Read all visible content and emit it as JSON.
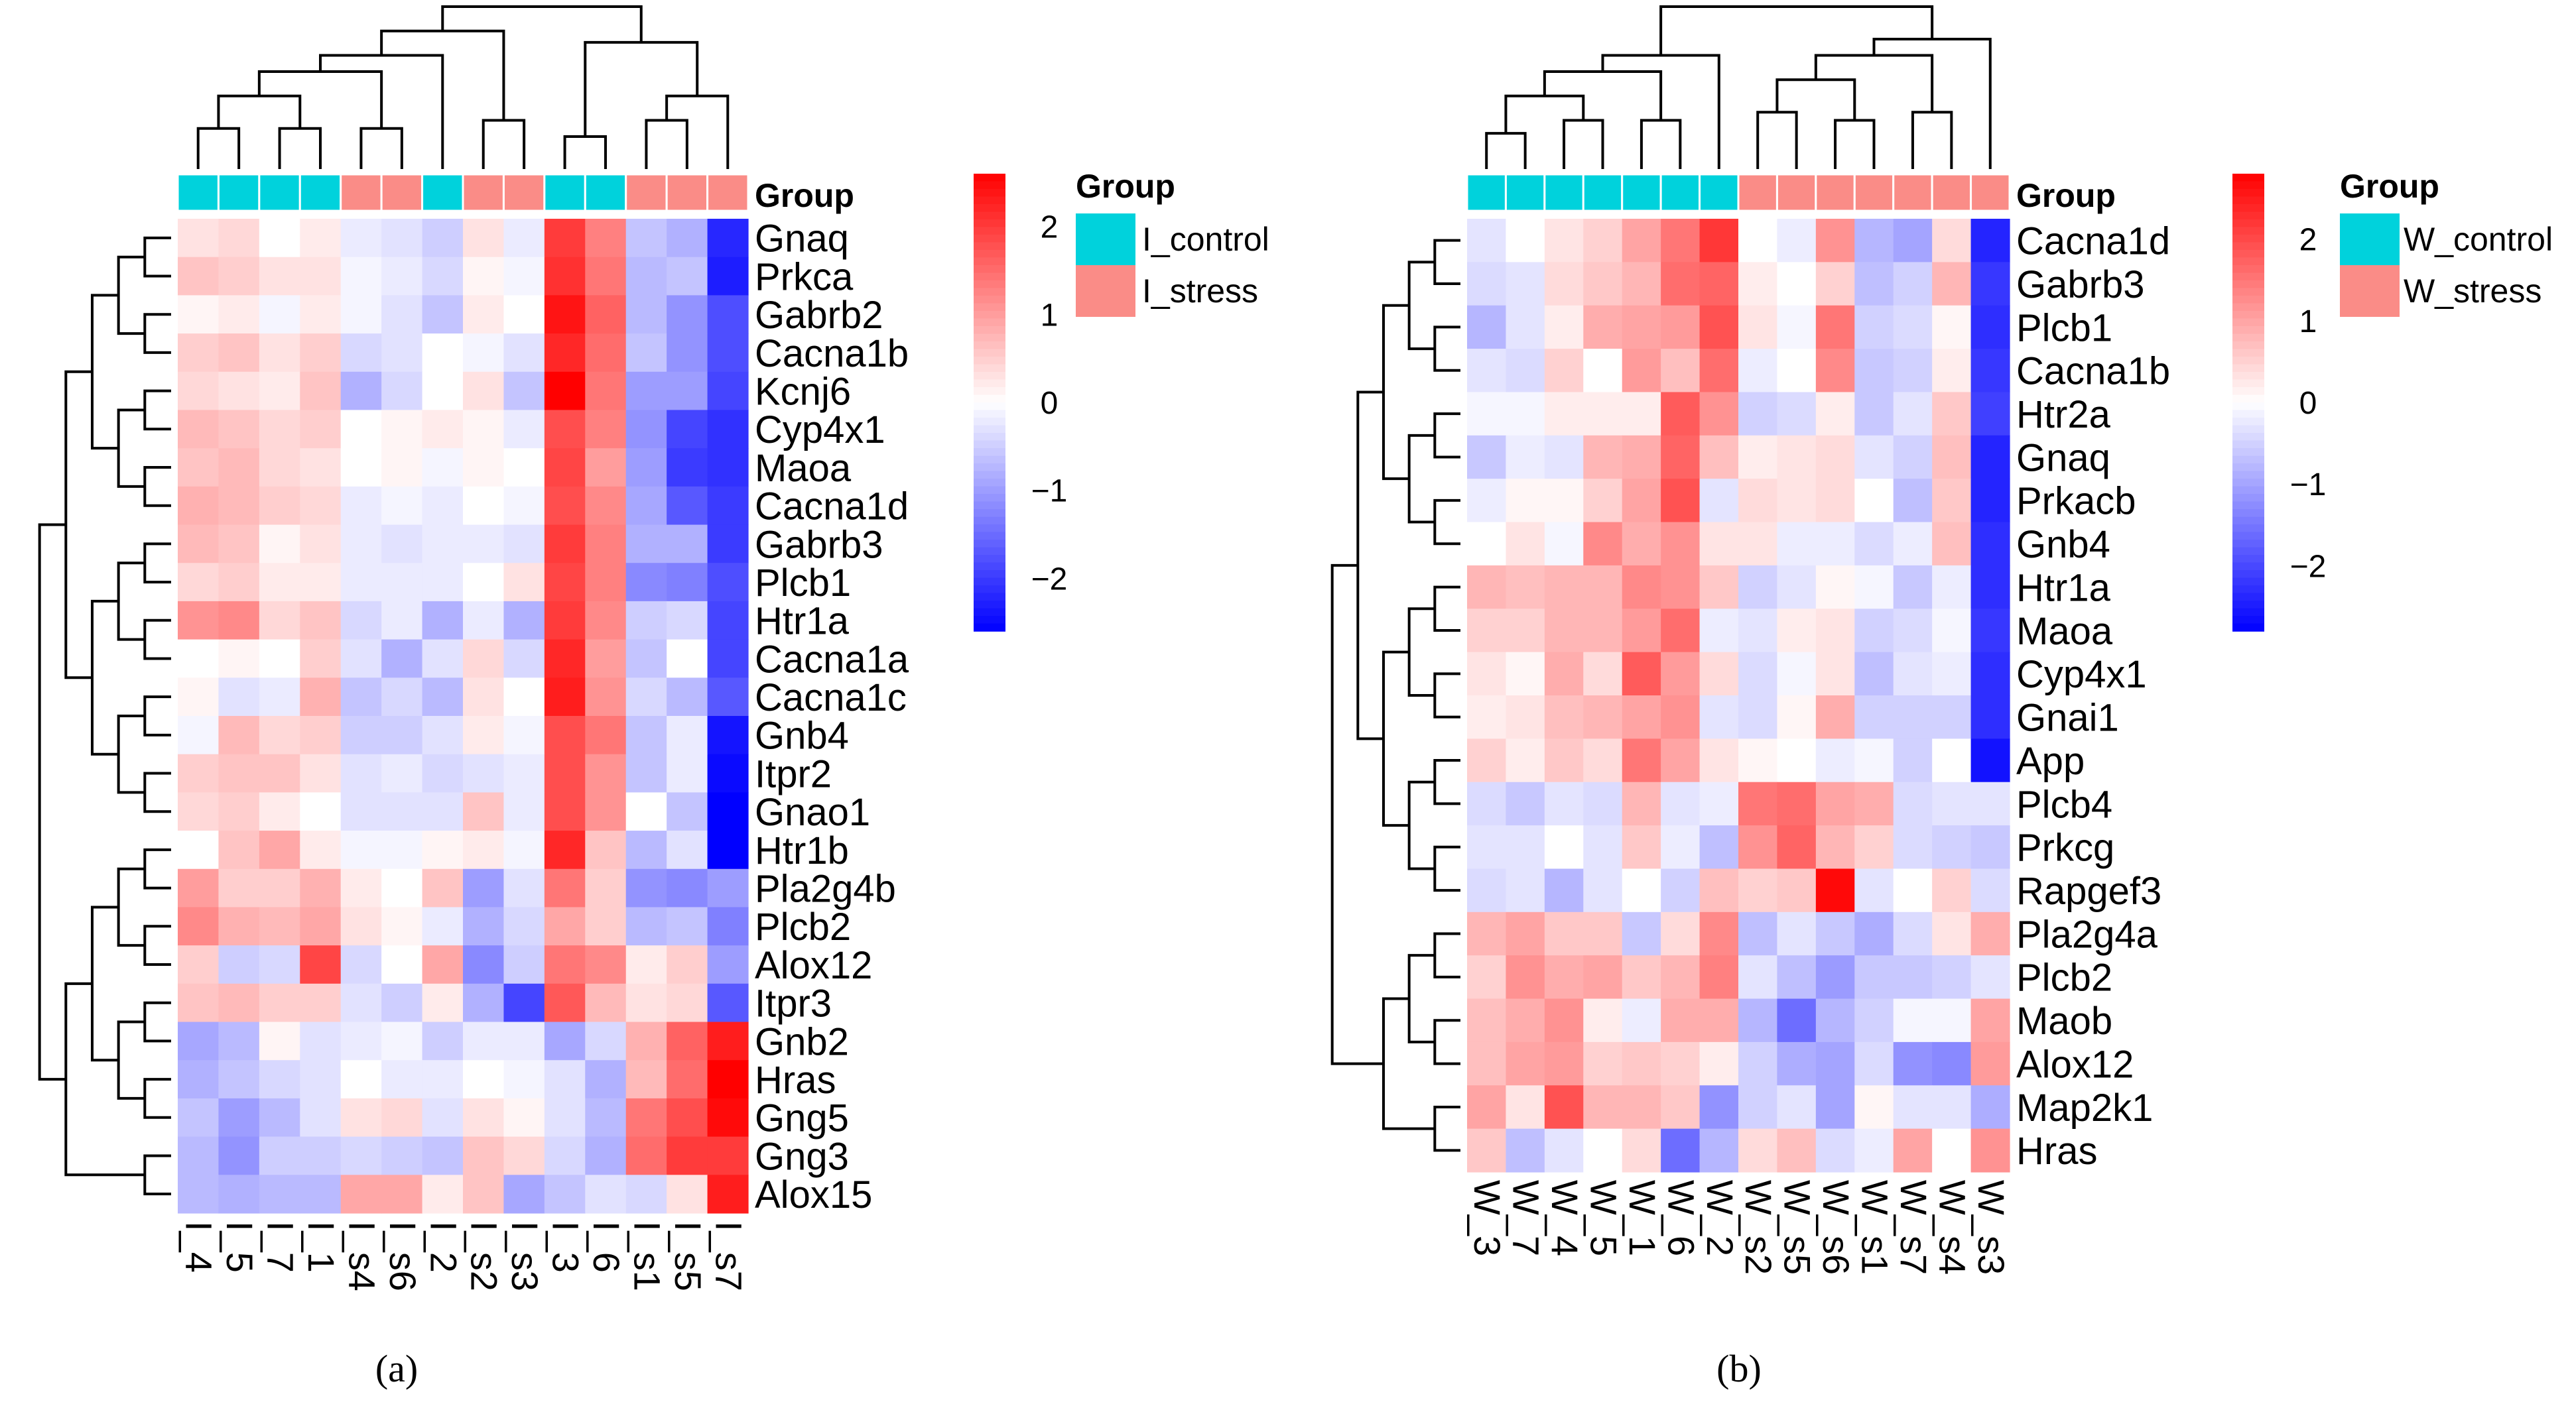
{
  "colors": {
    "low": "#0000ff",
    "mid": "#ffffff",
    "high": "#ff0000",
    "control": "#00d2dc",
    "stress": "#fa8c87"
  },
  "chart_data": [
    {
      "type": "heatmap",
      "caption": "(a)",
      "annotation_title": "Group",
      "legend_title": "Group",
      "legend_entries": [
        "I_control",
        "I_stress"
      ],
      "colorbar_ticks": [
        "2",
        "1",
        "0",
        "−1",
        "−2"
      ],
      "colorbar_range": [
        -2.6,
        2.6
      ],
      "rows": [
        "Gnaq",
        "Prkca",
        "Gabrb2",
        "Cacna1b",
        "Kcnj6",
        "Cyp4x1",
        "Maoa",
        "Cacna1d",
        "Gabrb3",
        "Plcb1",
        "Htr1a",
        "Cacna1a",
        "Cacna1c",
        "Gnb4",
        "Itpr2",
        "Gnao1",
        "Htr1b",
        "Pla2g4b",
        "Plcb2",
        "Alox12",
        "Itpr3",
        "Gnb2",
        "Hras",
        "Gng5",
        "Gng3",
        "Alox15"
      ],
      "columns": [
        "I_4",
        "I_5",
        "I_7",
        "I_1",
        "I_s4",
        "I_s6",
        "I_2",
        "I_s2",
        "I_s3",
        "I_3",
        "I_6",
        "I_s1",
        "I_s5",
        "I_s7"
      ],
      "column_groups": [
        "control",
        "control",
        "control",
        "control",
        "stress",
        "stress",
        "control",
        "stress",
        "stress",
        "control",
        "control",
        "stress",
        "stress",
        "stress"
      ],
      "values": [
        [
          0.3,
          0.4,
          0.0,
          0.2,
          -0.2,
          -0.3,
          -0.5,
          0.3,
          -0.2,
          2.0,
          1.3,
          -0.6,
          -0.8,
          -2.2
        ],
        [
          0.6,
          0.5,
          0.3,
          0.3,
          -0.1,
          -0.2,
          -0.4,
          0.1,
          -0.1,
          2.1,
          1.4,
          -0.7,
          -0.6,
          -2.3
        ],
        [
          0.1,
          0.2,
          -0.1,
          0.2,
          -0.1,
          -0.3,
          -0.6,
          0.2,
          0.0,
          2.4,
          1.6,
          -0.7,
          -1.1,
          -1.8
        ],
        [
          0.5,
          0.6,
          0.3,
          0.5,
          -0.4,
          -0.3,
          0.0,
          -0.1,
          -0.3,
          2.2,
          1.5,
          -0.6,
          -1.1,
          -1.8
        ],
        [
          0.4,
          0.3,
          0.2,
          0.6,
          -0.8,
          -0.4,
          0.0,
          0.3,
          -0.6,
          2.6,
          1.4,
          -1.0,
          -1.0,
          -1.9
        ],
        [
          0.7,
          0.6,
          0.4,
          0.5,
          0.0,
          0.1,
          0.2,
          0.1,
          -0.2,
          1.8,
          1.3,
          -1.1,
          -1.9,
          -2.1
        ],
        [
          0.6,
          0.7,
          0.4,
          0.3,
          0.0,
          0.1,
          -0.1,
          0.1,
          0.0,
          1.9,
          1.0,
          -1.0,
          -2.0,
          -2.1
        ],
        [
          0.8,
          0.7,
          0.5,
          0.4,
          -0.2,
          -0.1,
          -0.2,
          0.0,
          -0.1,
          1.8,
          1.2,
          -0.9,
          -1.7,
          -2.0
        ],
        [
          0.7,
          0.6,
          0.1,
          0.3,
          -0.2,
          -0.3,
          -0.2,
          -0.2,
          -0.3,
          2.0,
          1.3,
          -0.8,
          -0.8,
          -2.0
        ],
        [
          0.4,
          0.5,
          0.2,
          0.2,
          -0.2,
          -0.2,
          -0.2,
          0.0,
          0.3,
          1.9,
          1.3,
          -1.2,
          -1.3,
          -1.8
        ],
        [
          1.1,
          1.2,
          0.4,
          0.6,
          -0.4,
          -0.2,
          -0.8,
          -0.2,
          -0.8,
          2.0,
          1.2,
          -0.5,
          -0.4,
          -1.9
        ],
        [
          0.0,
          0.1,
          0.0,
          0.5,
          -0.3,
          -0.8,
          -0.3,
          0.4,
          -0.4,
          2.2,
          1.0,
          -0.6,
          0.0,
          -1.9
        ],
        [
          0.1,
          -0.3,
          -0.2,
          0.8,
          -0.6,
          -0.4,
          -0.7,
          0.3,
          0.0,
          2.3,
          1.1,
          -0.4,
          -0.7,
          -1.7
        ],
        [
          -0.1,
          0.7,
          0.4,
          0.5,
          -0.5,
          -0.5,
          -0.3,
          0.2,
          -0.1,
          1.8,
          1.4,
          -0.6,
          -0.2,
          -2.4
        ],
        [
          0.5,
          0.6,
          0.6,
          0.3,
          -0.3,
          -0.2,
          -0.4,
          -0.3,
          -0.2,
          1.8,
          1.1,
          -0.6,
          -0.2,
          -2.5
        ],
        [
          0.4,
          0.5,
          0.2,
          0.0,
          -0.3,
          -0.3,
          -0.3,
          0.6,
          -0.2,
          1.8,
          1.1,
          0.0,
          -0.6,
          -2.6
        ],
        [
          0.0,
          0.6,
          0.9,
          0.2,
          -0.1,
          -0.1,
          0.1,
          0.2,
          -0.1,
          2.2,
          0.6,
          -0.7,
          -0.3,
          -2.6
        ],
        [
          1.0,
          0.5,
          0.5,
          0.8,
          0.2,
          0.0,
          0.6,
          -1.0,
          -0.3,
          1.4,
          0.5,
          -1.1,
          -1.2,
          -1.0
        ],
        [
          1.2,
          0.8,
          0.7,
          0.9,
          0.3,
          0.1,
          -0.2,
          -0.8,
          -0.4,
          0.9,
          0.5,
          -0.7,
          -0.6,
          -1.3
        ],
        [
          0.5,
          -0.5,
          -0.4,
          1.9,
          -0.4,
          0.0,
          0.9,
          -1.2,
          -0.5,
          1.4,
          1.2,
          0.2,
          0.5,
          -1.0
        ],
        [
          0.6,
          0.7,
          0.5,
          0.5,
          -0.3,
          -0.5,
          0.2,
          -0.8,
          -1.9,
          1.7,
          0.7,
          0.3,
          0.4,
          -1.7
        ],
        [
          -0.9,
          -0.7,
          0.1,
          -0.3,
          -0.2,
          -0.1,
          -0.5,
          -0.2,
          -0.2,
          -0.9,
          -0.4,
          0.8,
          1.6,
          2.3
        ],
        [
          -0.8,
          -0.6,
          -0.4,
          -0.3,
          0.0,
          -0.2,
          -0.2,
          0.0,
          -0.1,
          -0.3,
          -0.8,
          0.7,
          1.5,
          2.6
        ],
        [
          -0.6,
          -1.0,
          -0.7,
          -0.3,
          0.3,
          0.4,
          -0.3,
          0.3,
          0.1,
          -0.3,
          -0.7,
          1.4,
          1.8,
          2.5
        ],
        [
          -0.7,
          -1.1,
          -0.5,
          -0.5,
          -0.4,
          -0.5,
          -0.6,
          0.6,
          0.4,
          -0.4,
          -0.8,
          1.5,
          2.0,
          2.0
        ],
        [
          -0.7,
          -0.8,
          -0.7,
          -0.7,
          0.9,
          0.9,
          0.2,
          0.6,
          -0.9,
          -0.6,
          -0.3,
          -0.4,
          0.3,
          2.3
        ]
      ]
    },
    {
      "type": "heatmap",
      "caption": "(b)",
      "annotation_title": "Group",
      "legend_title": "Group",
      "legend_entries": [
        "W_control",
        "W_stress"
      ],
      "colorbar_ticks": [
        "2",
        "1",
        "0",
        "−1",
        "−2"
      ],
      "colorbar_range": [
        -2.8,
        2.8
      ],
      "rows": [
        "Cacna1d",
        "Gabrb3",
        "Plcb1",
        "Cacna1b",
        "Htr2a",
        "Gnaq",
        "Prkacb",
        "Gnb4",
        "Htr1a",
        "Maoa",
        "Cyp4x1",
        "Gnai1",
        "App",
        "Plcb4",
        "Prkcg",
        "Rapgef3",
        "Pla2g4a",
        "Plcb2",
        "Maob",
        "Alox12",
        "Map2k1",
        "Hras"
      ],
      "columns": [
        "W_3",
        "W_7",
        "W_4",
        "W_5",
        "W_1",
        "W_6",
        "W_2",
        "W_s2",
        "W_s5",
        "W_s6",
        "W_s1",
        "W_s7",
        "W_s4",
        "W_s3"
      ],
      "column_groups": [
        "control",
        "control",
        "control",
        "control",
        "control",
        "control",
        "control",
        "stress",
        "stress",
        "stress",
        "stress",
        "stress",
        "stress",
        "stress"
      ],
      "values": [
        [
          -0.3,
          0.0,
          0.3,
          0.5,
          1.0,
          1.5,
          2.2,
          0.0,
          -0.2,
          1.2,
          -0.8,
          -1.0,
          0.4,
          -2.4
        ],
        [
          -0.4,
          -0.3,
          0.4,
          0.6,
          0.8,
          1.6,
          1.7,
          0.2,
          0.0,
          0.5,
          -0.7,
          -0.5,
          0.8,
          -2.2
        ],
        [
          -0.8,
          -0.3,
          0.2,
          0.9,
          1.0,
          1.1,
          1.9,
          0.3,
          -0.1,
          1.5,
          -0.5,
          -0.4,
          0.1,
          -2.3
        ],
        [
          -0.3,
          -0.4,
          0.5,
          0.0,
          1.1,
          0.7,
          1.6,
          -0.2,
          0.0,
          1.3,
          -0.6,
          -0.5,
          0.2,
          -2.2
        ],
        [
          -0.1,
          -0.1,
          0.2,
          0.2,
          0.2,
          1.8,
          1.2,
          -0.5,
          -0.4,
          0.2,
          -0.6,
          -0.3,
          0.6,
          -2.1
        ],
        [
          -0.6,
          -0.2,
          -0.3,
          0.8,
          0.9,
          1.7,
          0.7,
          0.2,
          0.3,
          0.4,
          -0.3,
          -0.5,
          0.7,
          -2.4
        ],
        [
          -0.2,
          0.1,
          0.1,
          0.5,
          1.0,
          1.9,
          -0.3,
          0.4,
          0.3,
          0.4,
          0.0,
          -0.7,
          0.6,
          -2.4
        ],
        [
          0.0,
          0.3,
          -0.1,
          1.3,
          0.9,
          1.2,
          0.3,
          0.3,
          -0.2,
          -0.2,
          -0.4,
          -0.2,
          0.7,
          -2.3
        ],
        [
          0.8,
          0.7,
          0.8,
          0.8,
          1.3,
          1.2,
          0.6,
          -0.5,
          -0.3,
          0.1,
          -0.1,
          -0.6,
          -0.2,
          -2.3
        ],
        [
          0.5,
          0.5,
          0.8,
          0.8,
          1.1,
          1.6,
          -0.2,
          -0.3,
          0.2,
          0.3,
          -0.5,
          -0.4,
          -0.1,
          -2.2
        ],
        [
          0.3,
          0.1,
          0.9,
          0.4,
          1.8,
          1.1,
          0.4,
          -0.4,
          -0.1,
          0.3,
          -0.7,
          -0.3,
          -0.2,
          -2.3
        ],
        [
          0.2,
          0.3,
          0.7,
          0.8,
          1.0,
          1.2,
          -0.3,
          -0.4,
          0.1,
          0.9,
          -0.5,
          -0.5,
          -0.5,
          -2.3
        ],
        [
          0.5,
          0.2,
          0.6,
          0.4,
          1.5,
          1.0,
          0.3,
          0.1,
          0.0,
          -0.2,
          -0.1,
          -0.5,
          0.0,
          -2.6
        ],
        [
          -0.4,
          -0.6,
          -0.3,
          -0.4,
          0.8,
          -0.3,
          -0.2,
          1.5,
          1.6,
          1.0,
          0.9,
          -0.4,
          -0.3,
          -0.3
        ],
        [
          -0.3,
          -0.3,
          0.0,
          -0.3,
          0.6,
          -0.2,
          -0.7,
          1.2,
          1.7,
          0.8,
          0.5,
          -0.4,
          -0.5,
          -0.6
        ],
        [
          -0.4,
          -0.3,
          -0.8,
          -0.3,
          0.0,
          -0.5,
          0.7,
          0.5,
          0.6,
          2.7,
          -0.3,
          0.0,
          0.5,
          -0.4
        ],
        [
          0.8,
          1.0,
          0.6,
          0.6,
          -0.6,
          0.4,
          1.3,
          -0.7,
          -0.3,
          -0.6,
          -0.9,
          -0.4,
          0.3,
          0.9
        ],
        [
          0.5,
          1.2,
          0.9,
          1.0,
          0.6,
          0.8,
          1.4,
          -0.3,
          -0.7,
          -1.1,
          -0.6,
          -0.6,
          -0.5,
          -0.3
        ],
        [
          0.7,
          0.9,
          1.2,
          0.2,
          -0.2,
          0.9,
          0.9,
          -0.8,
          -1.6,
          -0.8,
          -0.5,
          -0.1,
          -0.1,
          1.0
        ],
        [
          0.7,
          1.0,
          1.1,
          0.5,
          0.6,
          0.5,
          0.2,
          -0.5,
          -0.9,
          -1.0,
          -0.4,
          -1.2,
          -1.3,
          1.1
        ],
        [
          1.0,
          0.3,
          1.9,
          0.8,
          0.8,
          0.6,
          -1.2,
          -0.5,
          -0.3,
          -1.0,
          0.1,
          -0.3,
          -0.3,
          -0.9
        ],
        [
          0.6,
          -0.7,
          -0.3,
          0.0,
          0.4,
          -1.6,
          -0.8,
          0.4,
          0.7,
          -0.4,
          -0.2,
          1.0,
          0.0,
          1.2
        ]
      ]
    }
  ]
}
